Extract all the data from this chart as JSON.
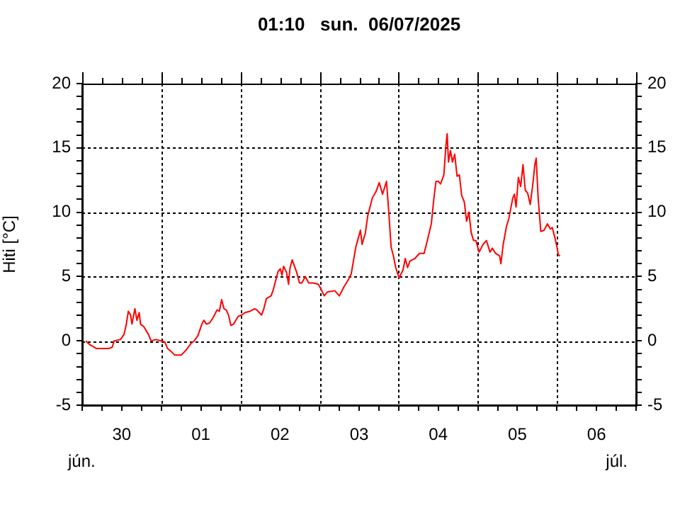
{
  "chart_data": {
    "type": "line",
    "title": "01:10   sun.  06/07/2025",
    "ylabel": "Hiti [°C]",
    "annotations": [
      "jún.",
      "júl."
    ],
    "x": [
      "2025-06-30T01:06",
      "2025-06-30T02:18",
      "2025-06-30T04:24",
      "2025-06-30T08:00",
      "2025-06-30T09:06",
      "2025-06-30T09:42",
      "2025-06-30T11:36",
      "2025-06-30T12:42",
      "2025-06-30T13:24",
      "2025-06-30T14:00",
      "2025-06-30T14:42",
      "2025-06-30T15:06",
      "2025-06-30T16:00",
      "2025-06-30T16:36",
      "2025-06-30T17:18",
      "2025-06-30T17:42",
      "2025-06-30T18:42",
      "2025-06-30T20:06",
      "2025-06-30T20:54",
      "2025-06-30T22:18",
      "2025-07-01T00:00",
      "2025-07-01T01:06",
      "2025-07-01T01:54",
      "2025-07-01T03:18",
      "2025-07-01T04:00",
      "2025-07-01T06:06",
      "2025-07-01T07:36",
      "2025-07-01T09:00",
      "2025-07-01T10:00",
      "2025-07-01T11:06",
      "2025-07-01T12:18",
      "2025-07-01T12:54",
      "2025-07-01T13:42",
      "2025-07-01T14:42",
      "2025-07-01T15:42",
      "2025-07-01T16:54",
      "2025-07-01T17:36",
      "2025-07-01T18:18",
      "2025-07-01T19:00",
      "2025-07-01T19:42",
      "2025-07-01T20:24",
      "2025-07-01T21:06",
      "2025-07-01T21:54",
      "2025-07-01T22:36",
      "2025-07-01T23:18",
      "2025-07-02T00:18",
      "2025-07-02T01:24",
      "2025-07-02T02:54",
      "2025-07-02T04:18",
      "2025-07-02T05:00",
      "2025-07-02T05:42",
      "2025-07-02T06:24",
      "2025-07-02T07:06",
      "2025-07-02T07:54",
      "2025-07-02T09:18",
      "2025-07-02T10:00",
      "2025-07-02T11:24",
      "2025-07-02T12:06",
      "2025-07-02T12:36",
      "2025-07-02T13:06",
      "2025-07-02T14:00",
      "2025-07-02T14:36",
      "2025-07-02T15:00",
      "2025-07-02T15:42",
      "2025-07-02T16:24",
      "2025-07-02T17:06",
      "2025-07-02T17:54",
      "2025-07-02T18:36",
      "2025-07-02T19:42",
      "2025-07-02T20:42",
      "2025-07-02T22:06",
      "2025-07-02T23:36",
      "2025-07-03T00:18",
      "2025-07-03T01:24",
      "2025-07-03T02:24",
      "2025-07-03T04:36",
      "2025-07-03T06:00",
      "2025-07-03T07:24",
      "2025-07-03T08:36",
      "2025-07-03T09:36",
      "2025-07-03T11:00",
      "2025-07-03T12:24",
      "2025-07-03T12:54",
      "2025-07-03T13:54",
      "2025-07-03T14:36",
      "2025-07-03T16:00",
      "2025-07-03T17:06",
      "2025-07-03T18:06",
      "2025-07-03T19:06",
      "2025-07-03T20:18",
      "2025-07-03T21:00",
      "2025-07-03T21:42",
      "2025-07-03T22:24",
      "2025-07-03T23:06",
      "2025-07-04T00:06",
      "2025-07-04T01:18",
      "2025-07-04T02:00",
      "2025-07-04T02:42",
      "2025-07-04T03:24",
      "2025-07-04T04:54",
      "2025-07-04T06:18",
      "2025-07-04T07:42",
      "2025-07-04T08:24",
      "2025-07-04T09:54",
      "2025-07-04T10:36",
      "2025-07-04T11:18",
      "2025-07-04T12:00",
      "2025-07-04T12:42",
      "2025-07-04T13:42",
      "2025-07-04T14:18",
      "2025-07-04T14:42",
      "2025-07-04T15:06",
      "2025-07-04T15:42",
      "2025-07-04T16:18",
      "2025-07-04T17:00",
      "2025-07-04T17:42",
      "2025-07-04T18:24",
      "2025-07-04T19:06",
      "2025-07-04T19:54",
      "2025-07-04T20:36",
      "2025-07-04T21:18",
      "2025-07-04T22:00",
      "2025-07-04T22:42",
      "2025-07-04T23:24",
      "2025-07-05T00:24",
      "2025-07-05T01:36",
      "2025-07-05T02:36",
      "2025-07-05T03:42",
      "2025-07-05T04:24",
      "2025-07-05T05:24",
      "2025-07-05T06:36",
      "2025-07-05T07:00",
      "2025-07-05T07:42",
      "2025-07-05T08:42",
      "2025-07-05T09:24",
      "2025-07-05T10:36",
      "2025-07-05T11:06",
      "2025-07-05T11:36",
      "2025-07-05T12:18",
      "2025-07-05T13:00",
      "2025-07-05T13:42",
      "2025-07-05T14:24",
      "2025-07-05T15:06",
      "2025-07-05T15:54",
      "2025-07-05T16:36",
      "2025-07-05T17:18",
      "2025-07-05T17:42",
      "2025-07-05T18:18",
      "2025-07-05T19:06",
      "2025-07-05T20:06",
      "2025-07-05T21:06",
      "2025-07-05T22:00",
      "2025-07-05T22:36",
      "2025-07-05T23:24",
      "2025-07-06T00:00",
      "2025-07-06T00:24",
      "2025-07-06T00:54"
    ],
    "series": [
      {
        "color": "#ff0000",
        "values": [
          0,
          -0.3,
          -0.6,
          -0.6,
          -0.5,
          0,
          0.1,
          0.5,
          1.3,
          2.3,
          2.0,
          1.3,
          2.5,
          1.6,
          2.2,
          1.3,
          1.1,
          0.5,
          0,
          0.1,
          0,
          -0.1,
          -0.6,
          -0.9,
          -1.1,
          -1.1,
          -0.7,
          -0.2,
          0,
          0.4,
          1.3,
          1.6,
          1.3,
          1.4,
          1.8,
          2.4,
          2.3,
          3.2,
          2.5,
          2.4,
          2.0,
          1.2,
          1.3,
          1.6,
          1.9,
          2.0,
          2.2,
          2.3,
          2.5,
          2.4,
          2.2,
          2.0,
          2.5,
          3.3,
          3.5,
          4.0,
          5.4,
          5.6,
          5.1,
          5.8,
          5.3,
          4.4,
          5.6,
          6.3,
          5.8,
          5.3,
          4.5,
          4.5,
          5.0,
          4.5,
          4.5,
          4.4,
          4.1,
          3.5,
          3.8,
          3.9,
          3.5,
          4.2,
          4.7,
          5.2,
          7.3,
          8.6,
          7.5,
          8.4,
          9.7,
          11.1,
          11.6,
          12.3,
          11.4,
          12.4,
          10.0,
          7.3,
          6.6,
          5.7,
          4.9,
          5.5,
          6.4,
          5.7,
          6.2,
          6.4,
          6.8,
          6.8,
          7.5,
          9.1,
          10.9,
          12.4,
          12.4,
          12.2,
          12.9,
          15.1,
          16.1,
          13.9,
          14.8,
          13.9,
          14.5,
          12.8,
          12.9,
          11.3,
          10.8,
          9.3,
          10.0,
          8.4,
          7.8,
          7.8,
          6.9,
          7.5,
          7.8,
          6.9,
          7.2,
          6.8,
          6.6,
          6.0,
          7.5,
          8.9,
          9.5,
          11.1,
          11.4,
          10.4,
          12.7,
          12.0,
          13.7,
          11.7,
          11.5,
          10.6,
          12.0,
          13.7,
          14.2,
          11.1,
          8.5,
          8.6,
          9.1,
          8.7,
          8.8,
          8.0,
          7.3,
          6.7,
          6.6
        ]
      }
    ],
    "xlim": [
      "2025-06-30T00:00",
      "2025-07-07T00:00"
    ],
    "xticks": [
      {
        "value": "2025-06-30T00:00",
        "label": null
      },
      {
        "value": "2025-06-30T06:00",
        "label": null
      },
      {
        "value": "2025-06-30T12:00",
        "label": "30"
      },
      {
        "value": "2025-06-30T18:00",
        "label": null
      },
      {
        "value": "2025-07-01T00:00",
        "label": null
      },
      {
        "value": "2025-07-01T06:00",
        "label": null
      },
      {
        "value": "2025-07-01T12:00",
        "label": "01"
      },
      {
        "value": "2025-07-01T18:00",
        "label": null
      },
      {
        "value": "2025-07-02T00:00",
        "label": null
      },
      {
        "value": "2025-07-02T06:00",
        "label": null
      },
      {
        "value": "2025-07-02T12:00",
        "label": "02"
      },
      {
        "value": "2025-07-02T18:00",
        "label": null
      },
      {
        "value": "2025-07-03T00:00",
        "label": null
      },
      {
        "value": "2025-07-03T06:00",
        "label": null
      },
      {
        "value": "2025-07-03T12:00",
        "label": "03"
      },
      {
        "value": "2025-07-03T18:00",
        "label": null
      },
      {
        "value": "2025-07-04T00:00",
        "label": null
      },
      {
        "value": "2025-07-04T06:00",
        "label": null
      },
      {
        "value": "2025-07-04T12:00",
        "label": "04"
      },
      {
        "value": "2025-07-04T18:00",
        "label": null
      },
      {
        "value": "2025-07-05T00:00",
        "label": null
      },
      {
        "value": "2025-07-05T06:00",
        "label": null
      },
      {
        "value": "2025-07-05T12:00",
        "label": "05"
      },
      {
        "value": "2025-07-05T18:00",
        "label": null
      },
      {
        "value": "2025-07-06T00:00",
        "label": null
      },
      {
        "value": "2025-07-06T06:00",
        "label": null
      },
      {
        "value": "2025-07-06T12:00",
        "label": "06"
      },
      {
        "value": "2025-07-06T18:00",
        "label": null
      },
      {
        "value": "2025-07-07T00:00",
        "label": null
      }
    ],
    "ylim": [
      -5,
      20
    ],
    "yticks": [
      -5,
      {
        "value": -4,
        "label": null
      },
      {
        "value": -3,
        "label": null
      },
      {
        "value": -2,
        "label": null
      },
      {
        "value": -1,
        "label": null
      },
      0,
      {
        "value": 1,
        "label": null
      },
      {
        "value": 2,
        "label": null
      },
      {
        "value": 3,
        "label": null
      },
      {
        "value": 4,
        "label": null
      },
      5,
      {
        "value": 6,
        "label": null
      },
      {
        "value": 7,
        "label": null
      },
      {
        "value": 8,
        "label": null
      },
      {
        "value": 9,
        "label": null
      },
      10,
      {
        "value": 11,
        "label": null
      },
      {
        "value": 12,
        "label": null
      },
      {
        "value": 13,
        "label": null
      },
      {
        "value": 14,
        "label": null
      },
      15,
      {
        "value": 16,
        "label": null
      },
      {
        "value": 17,
        "label": null
      },
      {
        "value": 18,
        "label": null
      },
      {
        "value": 19,
        "label": null
      },
      20
    ],
    "y2lim": [
      -5,
      20
    ],
    "y2ticks": [
      -5,
      {
        "value": -4,
        "label": null
      },
      {
        "value": -3,
        "label": null
      },
      {
        "value": -2,
        "label": null
      },
      {
        "value": -1,
        "label": null
      },
      0,
      {
        "value": 1,
        "label": null
      },
      {
        "value": 2,
        "label": null
      },
      {
        "value": 3,
        "label": null
      },
      {
        "value": 4,
        "label": null
      },
      5,
      {
        "value": 6,
        "label": null
      },
      {
        "value": 7,
        "label": null
      },
      {
        "value": 8,
        "label": null
      },
      {
        "value": 9,
        "label": null
      },
      10,
      {
        "value": 11,
        "label": null
      },
      {
        "value": 12,
        "label": null
      },
      {
        "value": 13,
        "label": null
      },
      {
        "value": 14,
        "label": null
      },
      15,
      {
        "value": 16,
        "label": null
      },
      {
        "value": 17,
        "label": null
      },
      {
        "value": 18,
        "label": null
      },
      {
        "value": 19,
        "label": null
      },
      20
    ],
    "grid": true,
    "legend": false,
    "marker": "none",
    "line_style": "solid"
  }
}
